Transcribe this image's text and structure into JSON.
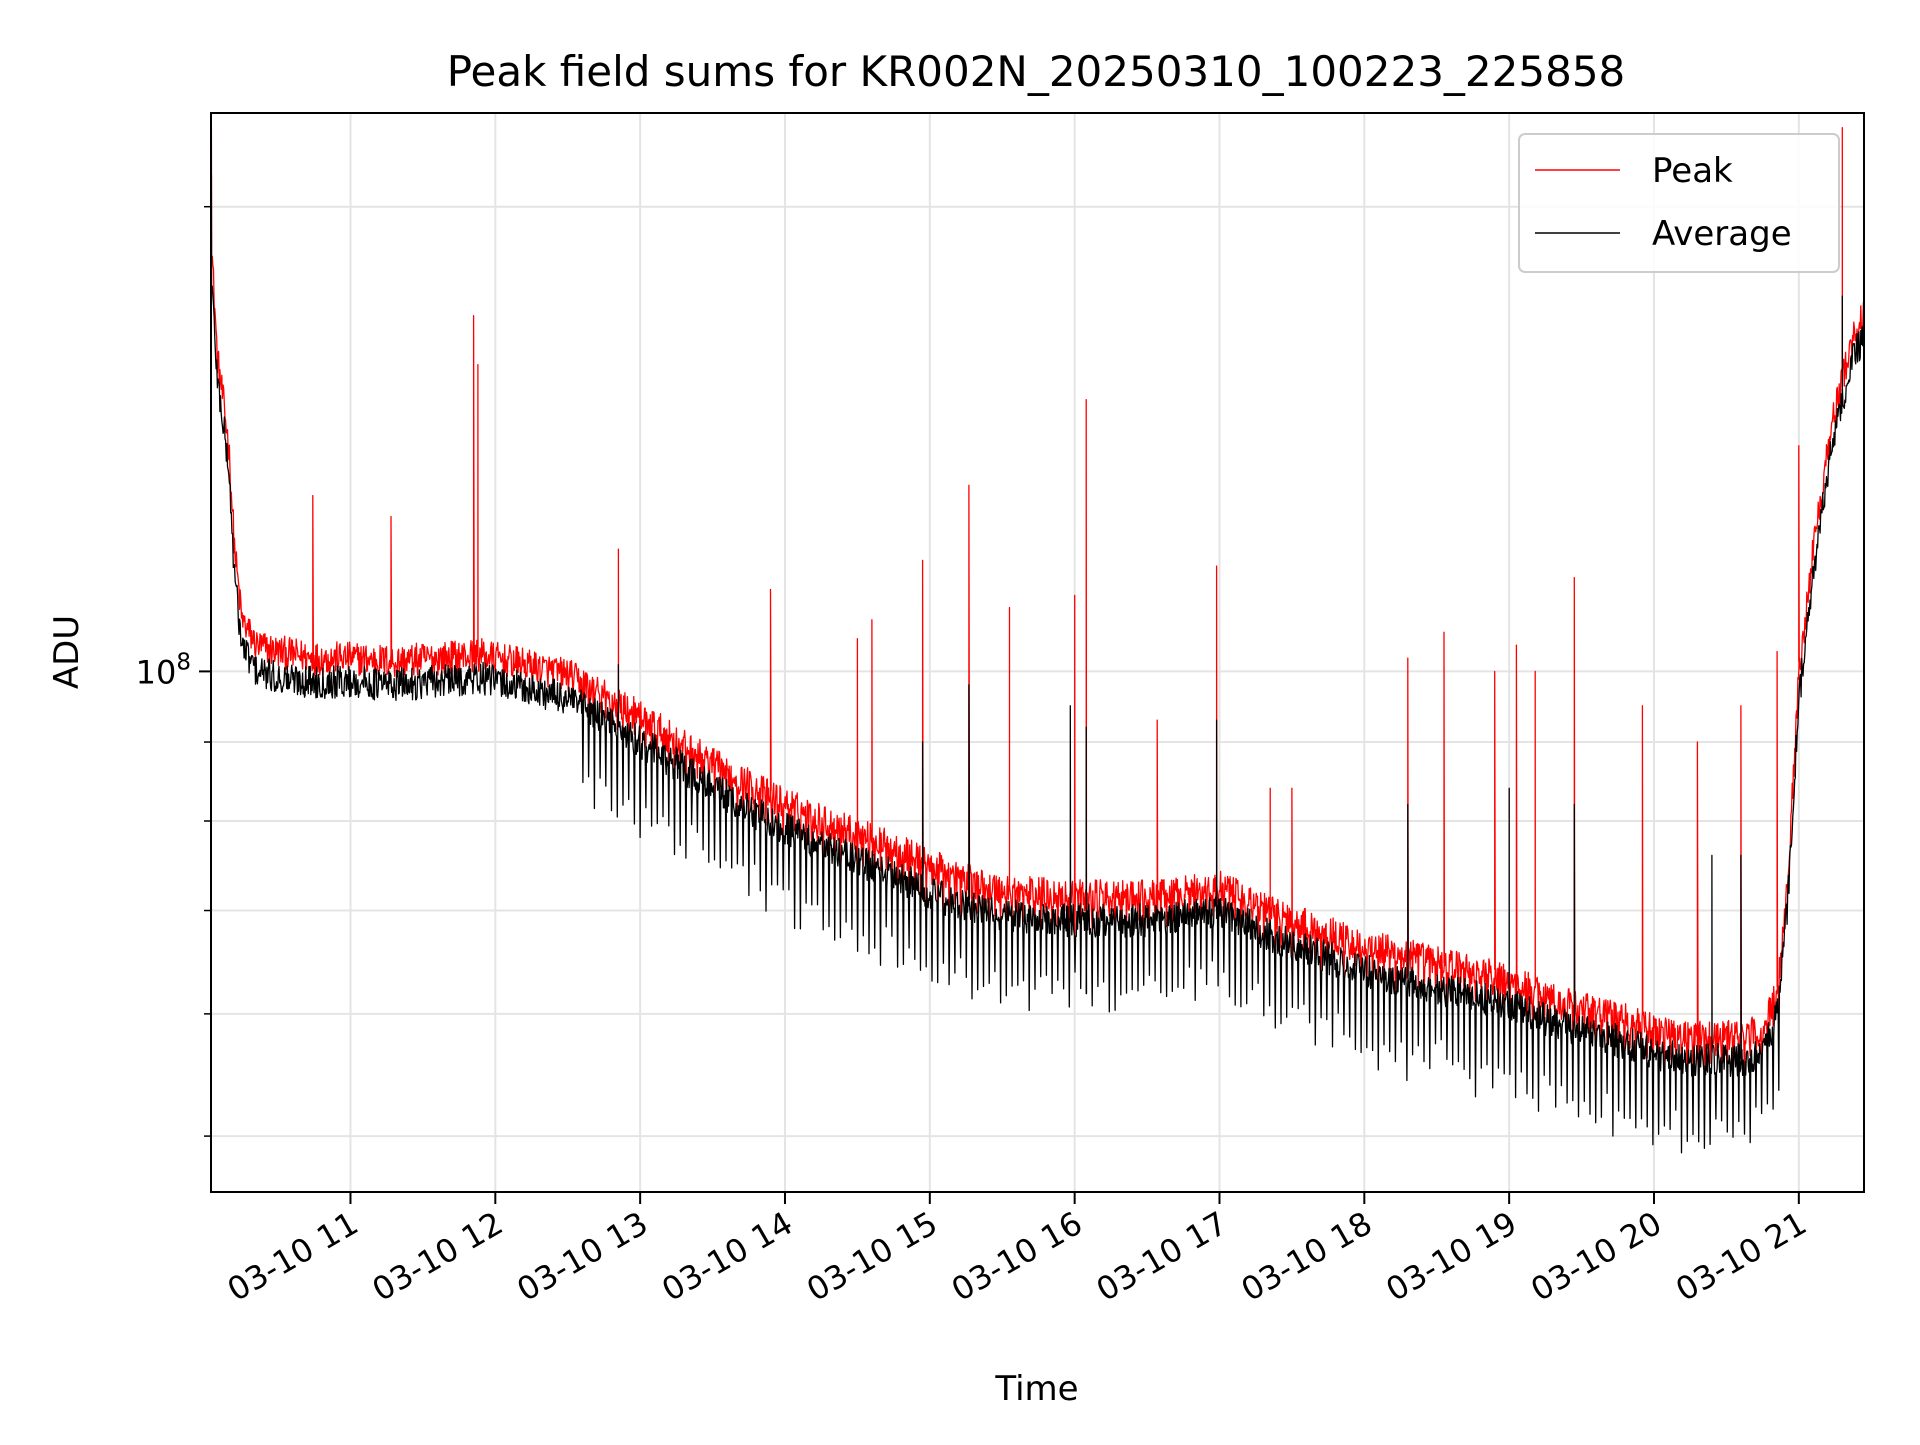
{
  "chart_data": {
    "type": "line",
    "title": "Peak field sums for KR002N_20250310_100223_225858",
    "xlabel": "Time",
    "ylabel": "ADU",
    "yscale": "log",
    "ylim": [
      46000000,
      230000000
    ],
    "xlim": [
      10.037,
      21.45
    ],
    "x_unit": "hour of day on 03-10",
    "grid": true,
    "legend_position": "top-right",
    "x_ticks": [
      {
        "value": 11,
        "label": "03-10 11"
      },
      {
        "value": 12,
        "label": "03-10 12"
      },
      {
        "value": 13,
        "label": "03-10 13"
      },
      {
        "value": 14,
        "label": "03-10 14"
      },
      {
        "value": 15,
        "label": "03-10 15"
      },
      {
        "value": 16,
        "label": "03-10 16"
      },
      {
        "value": 17,
        "label": "03-10 17"
      },
      {
        "value": 18,
        "label": "03-10 18"
      },
      {
        "value": 19,
        "label": "03-10 19"
      },
      {
        "value": 20,
        "label": "03-10 20"
      },
      {
        "value": 21,
        "label": "03-10 21"
      }
    ],
    "y_major_ticks": [
      {
        "value": 100000000,
        "base": "10",
        "exp": "8"
      }
    ],
    "y_minor_ticks": [
      50000000,
      60000000,
      70000000,
      80000000,
      90000000,
      200000000
    ],
    "series": [
      {
        "name": "Peak",
        "color": "#ff0000",
        "baseline": [
          [
            10.04,
            190000000
          ],
          [
            10.08,
            160000000
          ],
          [
            10.12,
            150000000
          ],
          [
            10.16,
            140000000
          ],
          [
            10.2,
            120000000
          ],
          [
            10.25,
            108000000
          ],
          [
            10.35,
            104000000
          ],
          [
            10.5,
            103000000
          ],
          [
            10.75,
            102000000
          ],
          [
            11.0,
            102000000
          ],
          [
            11.3,
            101500000
          ],
          [
            11.6,
            102000000
          ],
          [
            11.9,
            102500000
          ],
          [
            12.2,
            101000000
          ],
          [
            12.5,
            99500000
          ],
          [
            12.8,
            96000000
          ],
          [
            13.0,
            93500000
          ],
          [
            13.3,
            89500000
          ],
          [
            13.6,
            86000000
          ],
          [
            13.9,
            83000000
          ],
          [
            14.2,
            80500000
          ],
          [
            14.5,
            78500000
          ],
          [
            14.8,
            76500000
          ],
          [
            15.0,
            75000000
          ],
          [
            15.2,
            73500000
          ],
          [
            15.4,
            72500000
          ],
          [
            15.6,
            72000000
          ],
          [
            15.8,
            71800000
          ],
          [
            16.0,
            71500000
          ],
          [
            16.3,
            71500000
          ],
          [
            16.6,
            71500000
          ],
          [
            16.8,
            72000000
          ],
          [
            17.0,
            72500000
          ],
          [
            17.2,
            71000000
          ],
          [
            17.5,
            69000000
          ],
          [
            17.8,
            67500000
          ],
          [
            18.0,
            66500000
          ],
          [
            18.3,
            65500000
          ],
          [
            18.6,
            64500000
          ],
          [
            18.8,
            63800000
          ],
          [
            19.0,
            63000000
          ],
          [
            19.2,
            62000000
          ],
          [
            19.5,
            60500000
          ],
          [
            19.8,
            59500000
          ],
          [
            20.0,
            58500000
          ],
          [
            20.3,
            58000000
          ],
          [
            20.6,
            58000000
          ],
          [
            20.75,
            58500000
          ],
          [
            20.85,
            62000000
          ],
          [
            20.92,
            72000000
          ],
          [
            21.0,
            100000000
          ],
          [
            21.1,
            120000000
          ],
          [
            21.2,
            140000000
          ],
          [
            21.3,
            155000000
          ],
          [
            21.38,
            165000000
          ],
          [
            21.45,
            170000000
          ]
        ],
        "spikes": [
          [
            10.04,
            225000000
          ],
          [
            10.74,
            130000000
          ],
          [
            11.28,
            126000000
          ],
          [
            11.85,
            170000000
          ],
          [
            11.88,
            158000000
          ],
          [
            12.85,
            120000000
          ],
          [
            13.9,
            113000000
          ],
          [
            14.5,
            105000000
          ],
          [
            14.6,
            108000000
          ],
          [
            14.95,
            118000000
          ],
          [
            15.27,
            132000000
          ],
          [
            15.55,
            110000000
          ],
          [
            16.0,
            112000000
          ],
          [
            16.08,
            150000000
          ],
          [
            16.57,
            93000000
          ],
          [
            16.98,
            117000000
          ],
          [
            17.35,
            84000000
          ],
          [
            17.5,
            84000000
          ],
          [
            18.3,
            102000000
          ],
          [
            18.55,
            106000000
          ],
          [
            18.9,
            100000000
          ],
          [
            19.05,
            104000000
          ],
          [
            19.18,
            100000000
          ],
          [
            19.45,
            115000000
          ],
          [
            19.92,
            95000000
          ],
          [
            20.3,
            90000000
          ],
          [
            20.6,
            95000000
          ],
          [
            20.85,
            103000000
          ],
          [
            21.0,
            140000000
          ],
          [
            21.3,
            225000000
          ]
        ]
      },
      {
        "name": "Average",
        "color": "#000000",
        "baseline": [
          [
            10.04,
            180000000
          ],
          [
            10.08,
            155000000
          ],
          [
            10.12,
            145000000
          ],
          [
            10.16,
            135000000
          ],
          [
            10.2,
            115000000
          ],
          [
            10.25,
            104000000
          ],
          [
            10.35,
            100000000
          ],
          [
            10.5,
            99000000
          ],
          [
            10.75,
            98500000
          ],
          [
            11.0,
            98500000
          ],
          [
            11.3,
            98000000
          ],
          [
            11.6,
            98500000
          ],
          [
            11.9,
            99000000
          ],
          [
            12.2,
            97500000
          ],
          [
            12.5,
            96000000
          ],
          [
            12.8,
            92500000
          ],
          [
            13.0,
            90000000
          ],
          [
            13.3,
            86500000
          ],
          [
            13.6,
            83000000
          ],
          [
            13.9,
            80000000
          ],
          [
            14.2,
            77500000
          ],
          [
            14.5,
            75500000
          ],
          [
            14.8,
            73500000
          ],
          [
            15.0,
            72000000
          ],
          [
            15.2,
            70500000
          ],
          [
            15.4,
            69800000
          ],
          [
            15.6,
            69500000
          ],
          [
            15.8,
            69200000
          ],
          [
            16.0,
            69000000
          ],
          [
            16.3,
            69000000
          ],
          [
            16.6,
            69000000
          ],
          [
            16.8,
            69500000
          ],
          [
            17.0,
            70000000
          ],
          [
            17.2,
            68500000
          ],
          [
            17.5,
            66500000
          ],
          [
            17.8,
            65000000
          ],
          [
            18.0,
            64000000
          ],
          [
            18.3,
            63000000
          ],
          [
            18.6,
            62000000
          ],
          [
            18.8,
            61500000
          ],
          [
            19.0,
            60800000
          ],
          [
            19.2,
            59800000
          ],
          [
            19.5,
            58500000
          ],
          [
            19.8,
            57500000
          ],
          [
            20.0,
            56500000
          ],
          [
            20.3,
            56000000
          ],
          [
            20.6,
            56000000
          ],
          [
            20.75,
            56500000
          ],
          [
            20.85,
            60000000
          ],
          [
            20.92,
            70000000
          ],
          [
            21.0,
            96000000
          ],
          [
            21.1,
            115000000
          ],
          [
            21.2,
            135000000
          ],
          [
            21.3,
            150000000
          ],
          [
            21.38,
            160000000
          ],
          [
            21.45,
            165000000
          ]
        ],
        "spikes": [
          [
            10.04,
            210000000
          ],
          [
            12.85,
            101000000
          ],
          [
            14.95,
            90000000
          ],
          [
            15.27,
            98000000
          ],
          [
            15.97,
            95000000
          ],
          [
            16.08,
            92000000
          ],
          [
            16.98,
            93000000
          ],
          [
            18.3,
            82000000
          ],
          [
            19.0,
            84000000
          ],
          [
            19.45,
            82000000
          ],
          [
            20.4,
            76000000
          ],
          [
            20.6,
            76000000
          ],
          [
            21.3,
            175000000
          ]
        ]
      }
    ]
  }
}
